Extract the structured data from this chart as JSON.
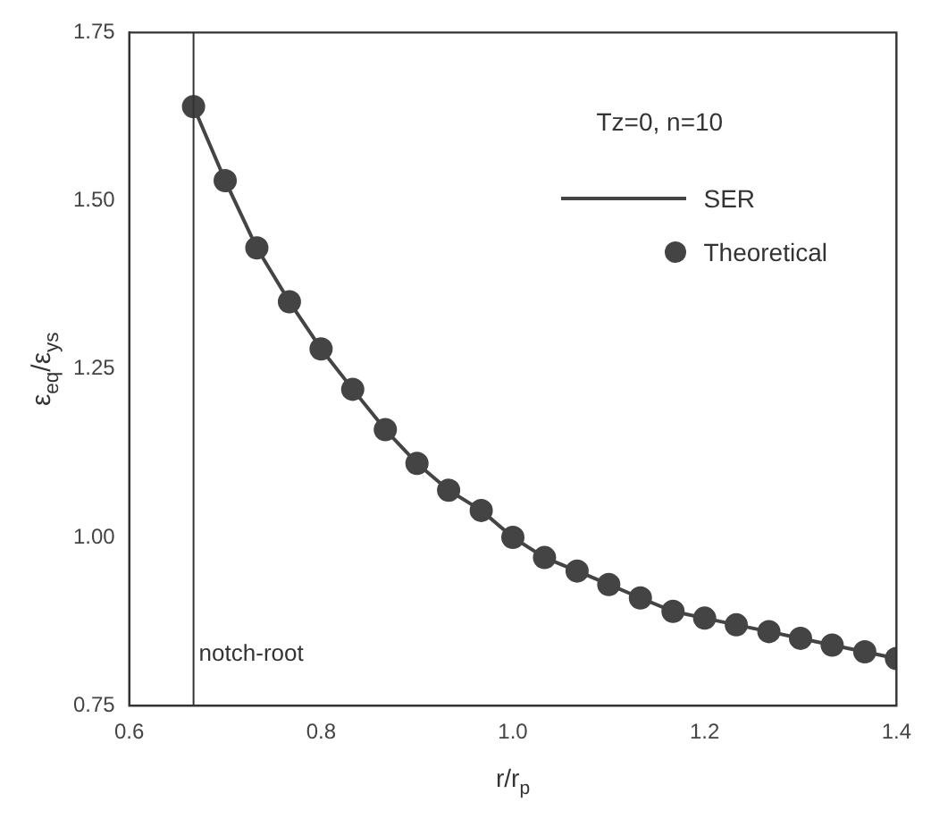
{
  "chart_data": {
    "type": "line",
    "xlabel": "r/r$_{p}$",
    "ylabel": "ε$_{eq}$/ε$_{ys}$",
    "legend_title": "Tz=0, n=10",
    "xlim": [
      0.6,
      1.4
    ],
    "xticks": [
      0.6,
      0.8,
      {
        "value": 1,
        "label": "1.0"
      },
      1.2,
      1.4
    ],
    "ylim": [
      0.75,
      1.75
    ],
    "yticks": [
      0.75,
      {
        "value": 1,
        "label": "1.00"
      },
      1.25,
      {
        "value": 1.5,
        "label": "1.50"
      },
      1.75
    ],
    "grid": false,
    "legend": "top right",
    "ref_lines": [
      {
        "axis": "x",
        "value": 0.667,
        "label": "notch-root",
        "color": "#333333"
      }
    ],
    "series": [
      {
        "name": "SER",
        "type": "line",
        "marker": "none",
        "line_style": "solid",
        "color": "#444444",
        "x": [
          0.667,
          0.7,
          0.733,
          0.767,
          0.8,
          0.833,
          0.867,
          0.9,
          0.933,
          0.967,
          1.0,
          1.033,
          1.067,
          1.1,
          1.133,
          1.167,
          1.2,
          1.233,
          1.267,
          1.3,
          1.333,
          1.367,
          1.4
        ],
        "values": [
          1.64,
          1.53,
          1.43,
          1.35,
          1.28,
          1.22,
          1.16,
          1.11,
          1.07,
          1.04,
          1.0,
          0.97,
          0.95,
          0.93,
          0.91,
          0.89,
          0.88,
          0.87,
          0.86,
          0.85,
          0.84,
          0.83,
          0.82
        ]
      },
      {
        "name": "Theoretical",
        "type": "scatter",
        "marker": "circle",
        "color": "#444444",
        "x": [
          0.667,
          0.7,
          0.733,
          0.767,
          0.8,
          0.833,
          0.867,
          0.9,
          0.933,
          0.967,
          1.0,
          1.033,
          1.067,
          1.1,
          1.133,
          1.167,
          1.2,
          1.233,
          1.267,
          1.3,
          1.333,
          1.367,
          1.4
        ],
        "values": [
          1.64,
          1.53,
          1.43,
          1.35,
          1.28,
          1.22,
          1.16,
          1.11,
          1.07,
          1.04,
          1.0,
          0.97,
          0.95,
          0.93,
          0.91,
          0.89,
          0.88,
          0.87,
          0.86,
          0.85,
          0.84,
          0.83,
          0.82
        ]
      }
    ]
  }
}
